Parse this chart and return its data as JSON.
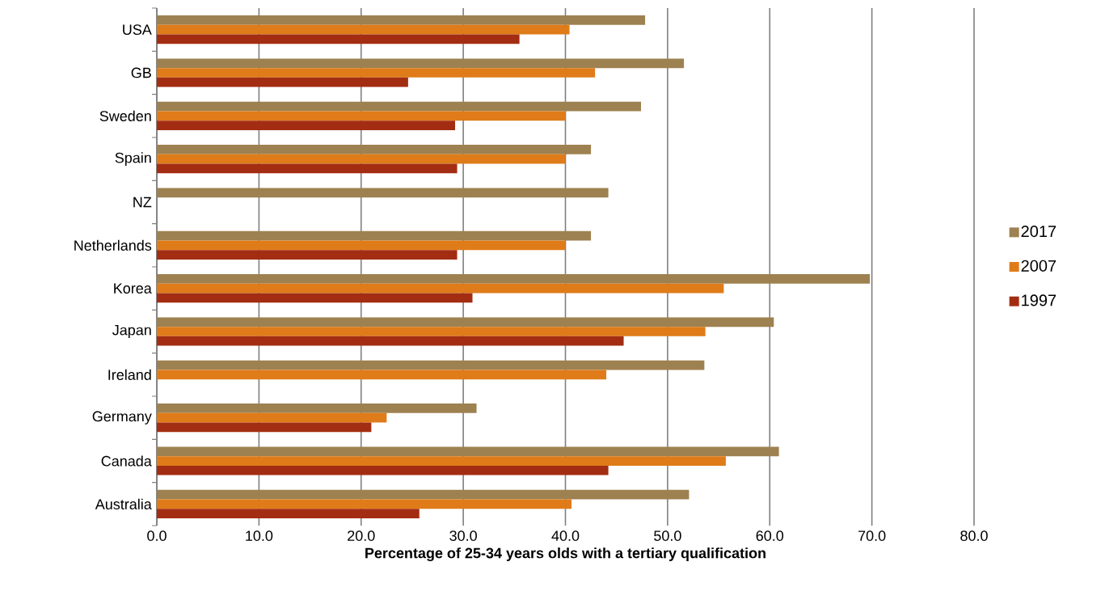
{
  "chart_data": {
    "type": "bar",
    "orientation": "horizontal",
    "xlabel": "Percentage of 25-34 years olds with a tertiary qualification",
    "categories": [
      "USA",
      "GB",
      "Sweden",
      "Spain",
      "NZ",
      "Netherlands",
      "Korea",
      "Japan",
      "Ireland",
      "Germany",
      "Canada",
      "Australia"
    ],
    "series": [
      {
        "name": "2017",
        "color": "#9e8150",
        "values": [
          47.8,
          51.6,
          47.4,
          42.5,
          44.2,
          42.5,
          69.8,
          60.4,
          53.6,
          31.3,
          60.9,
          52.1
        ]
      },
      {
        "name": "2007",
        "color": "#df7c19",
        "values": [
          40.4,
          42.9,
          40.0,
          40.0,
          null,
          40.0,
          55.5,
          53.7,
          44.0,
          22.5,
          55.7,
          40.6
        ]
      },
      {
        "name": "1997",
        "color": "#a32d12",
        "values": [
          35.5,
          24.6,
          29.2,
          29.4,
          null,
          29.4,
          30.9,
          45.7,
          null,
          21.0,
          44.2,
          25.7
        ]
      }
    ],
    "xlim": [
      0,
      80
    ],
    "xticks": [
      {
        "value": 0,
        "label": "0.0"
      },
      {
        "value": 10,
        "label": "10.0"
      },
      {
        "value": 20,
        "label": "20.0"
      },
      {
        "value": 30,
        "label": "30.0"
      },
      {
        "value": 40,
        "label": "40.0"
      },
      {
        "value": 50,
        "label": "50.0"
      },
      {
        "value": 60,
        "label": "60.0"
      },
      {
        "value": 70,
        "label": "70.0"
      },
      {
        "value": 80,
        "label": "80.0"
      }
    ],
    "grid": "x",
    "legend": "right"
  }
}
